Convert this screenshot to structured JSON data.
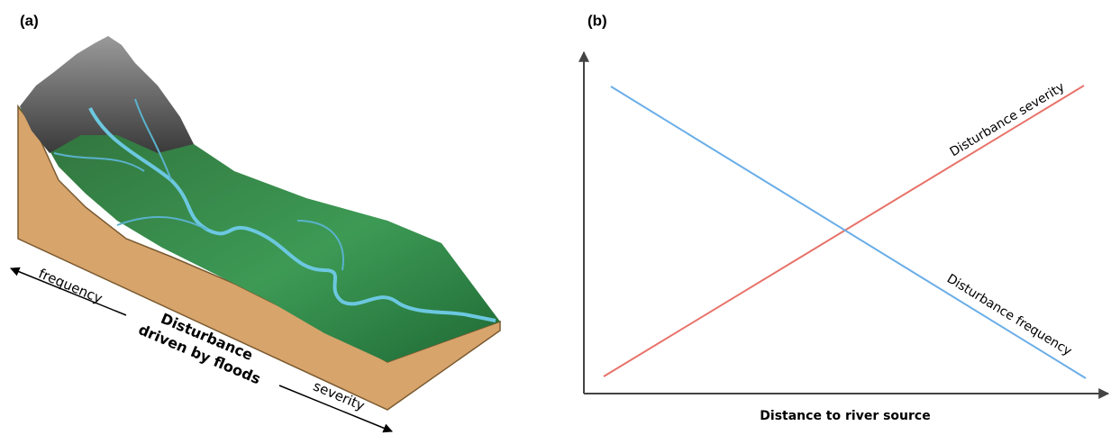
{
  "panel_a": {
    "label": "(a)",
    "arrow_left": "frequency",
    "center_lines": [
      "Disturbance",
      "driven by floods"
    ],
    "arrow_right": "severity"
  },
  "panel_b": {
    "label": "(b)",
    "x_axis_label": "Distance to river source",
    "lines": [
      {
        "label": "Disturbance severity",
        "color": "#e8736a"
      },
      {
        "label": "Disturbance frequency",
        "color": "#6aaee8"
      }
    ]
  }
}
